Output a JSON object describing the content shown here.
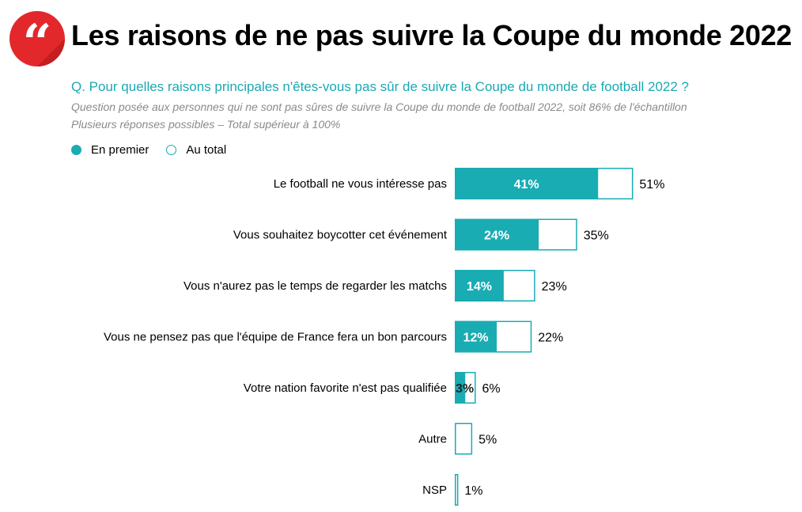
{
  "header": {
    "logo_glyph": "“",
    "title": "Les raisons de ne pas suivre la Coupe du monde 2022",
    "question": "Q. Pour quelles raisons principales n'êtes-vous pas sûr de suivre la Coupe du monde de football 2022 ?",
    "note1": "Question posée aux personnes qui ne sont pas sûres de suivre la Coupe du monde de football 2022, soit 86% de l'échantillon",
    "note2": "Plusieurs réponses possibles – Total supérieur à 100%"
  },
  "colors": {
    "accent": "#19acb3",
    "logo": "#e3282c",
    "question": "#1aa9b3",
    "note": "#8a8a8a"
  },
  "chart_data": {
    "type": "bar",
    "orientation": "horizontal",
    "categories": [
      "Le football ne vous intéresse pas",
      "Vous souhaitez boycotter cet événement",
      "Vous n'aurez pas le temps de regarder les matchs",
      "Vous ne pensez pas que l'équipe de France fera un bon parcours",
      "Votre nation favorite n'est pas qualifiée",
      "Autre",
      "NSP"
    ],
    "series": [
      {
        "name": "En premier",
        "values": [
          41,
          24,
          14,
          12,
          3,
          null,
          null
        ],
        "labels": [
          "41%",
          "24%",
          "14%",
          "12%",
          "3%",
          "",
          ""
        ]
      },
      {
        "name": "Au total",
        "values": [
          51,
          35,
          23,
          22,
          6,
          5,
          1
        ],
        "labels": [
          "51%",
          "35%",
          "23%",
          "22%",
          "6%",
          "5%",
          "1%"
        ]
      }
    ],
    "unit": "%",
    "legend_position": "top-left",
    "grid": false
  }
}
